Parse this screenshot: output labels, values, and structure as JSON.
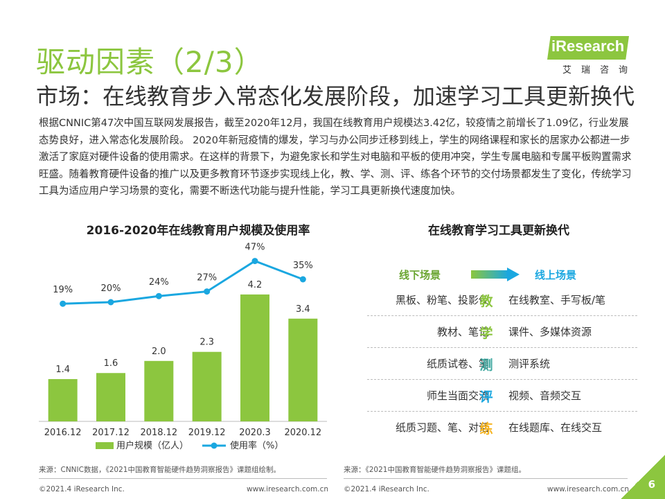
{
  "header": {
    "title": "驱动因素（2/3）",
    "subtitle": "市场：在线教育步入常态化发展阶段，加速学习工具更新换代"
  },
  "logo": {
    "brand": "iResearch",
    "cn": "艾瑞咨询"
  },
  "body": "根据CNNIC第47次中国互联网发展报告，截至2020年12月，我国在线教育用户规模达3.42亿，较疫情之前增长了1.09亿，行业发展态势良好，进入常态化发展阶段。 2020年新冠疫情的爆发，学习与办公同步迁移到线上，学生的网络课程和家长的居家办公都进一步激活了家庭对硬件设备的使用需求。在这样的背景下，为避免家长和学生对电脑和平板的使用冲突，学生专属电脑和专属平板购置需求旺盛。随着教育硬件设备的推广以及更多教育环节逐步实现线上化，教、学、测、评、练各个环节的交付场景都发生了变化，传统学习工具为适应用户学习场景的变化，需要不断迭代功能与提升性能，学习工具更新换代速度加快。",
  "chart_data": {
    "type": "bar",
    "title": "2016-2020年在线教育用户规模及使用率",
    "categories": [
      "2016.12",
      "2017.12",
      "2018.12",
      "2019.12",
      "2020.3",
      "2020.12"
    ],
    "series": [
      {
        "name": "用户规模（亿人）",
        "type": "bar",
        "values": [
          1.4,
          1.6,
          2.0,
          2.3,
          4.2,
          3.4
        ],
        "labels": [
          "1.4",
          "1.6",
          "2.0",
          "2.3",
          "4.2",
          "3.4"
        ],
        "color": "#8cc63f"
      },
      {
        "name": "使用率（%）",
        "type": "line",
        "values": [
          19,
          20,
          24,
          27,
          47,
          35
        ],
        "labels": [
          "19%",
          "20%",
          "24%",
          "27%",
          "47%",
          "35%"
        ],
        "color": "#1aa7e0"
      }
    ],
    "bar_ylim": [
      0,
      5
    ],
    "line_ylim": [
      0,
      50
    ],
    "legend": "bottom",
    "grid": false
  },
  "tools": {
    "title": "在线教育学习工具更新换代",
    "header_left": "线下场景",
    "header_right": "线上场景",
    "rows": [
      {
        "left": "黑板、粉笔、投影仪",
        "center": "教",
        "right": "在线教室、手写板/笔",
        "color": "#8cc63f"
      },
      {
        "left": "教材、笔记",
        "center": "学",
        "right": "课件、多媒体资源",
        "color": "#8cc63f"
      },
      {
        "left": "纸质试卷、笔",
        "center": "测",
        "right": "测评系统",
        "color": "#3fa8a0"
      },
      {
        "left": "师生当面交流",
        "center": "评",
        "right": "视频、音频交互",
        "color": "#1aa7e0"
      },
      {
        "left": "纸质习题、笔、对话",
        "center": "练",
        "right": "在线题库、在线交互",
        "color": "#f6b420"
      }
    ]
  },
  "sources": {
    "left": "来源：CNNIC数据，《2021中国教育智能硬件趋势洞察报告》课题组绘制。",
    "right": "来源：《2021中国教育智能硬件趋势洞察报告》课题组。"
  },
  "footer": {
    "left_copy": "©2021.4 iResearch Inc.",
    "left_url": "www.iresearch.com.cn",
    "right_copy": "©2021.4 iResearch Inc.",
    "right_url": "www.iresearch.com.cn",
    "page": "6"
  }
}
